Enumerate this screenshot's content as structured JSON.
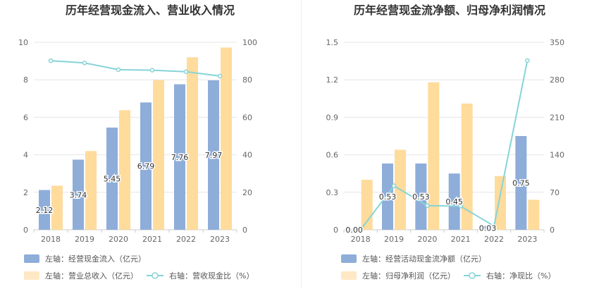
{
  "chart_data": [
    {
      "type": "bar",
      "title": "历年经营现金流入、营业收入情况",
      "categories": [
        "2018",
        "2019",
        "2020",
        "2021",
        "2022",
        "2023"
      ],
      "left_ylim": [
        0,
        10
      ],
      "left_yticks": [
        "0",
        "2",
        "4",
        "6",
        "8",
        "10"
      ],
      "right_ylim": [
        0,
        100
      ],
      "right_yticks": [
        "0",
        "20",
        "40",
        "60",
        "80",
        "100"
      ],
      "grid": true,
      "legend_position": "bottom",
      "series": [
        {
          "name": "左轴：经营现金流入（亿元）",
          "type": "bar",
          "axis": "left",
          "color": "#8eadd9",
          "values": [
            2.12,
            3.74,
            5.45,
            6.79,
            7.76,
            7.97
          ],
          "labels": [
            "2.12",
            "3.74",
            "5.45",
            "6.79",
            "7.76",
            "7.97"
          ]
        },
        {
          "name": "左轴：营业总收入（亿元）",
          "type": "bar",
          "axis": "left",
          "color": "#ffdb9c",
          "values": [
            2.35,
            4.2,
            6.38,
            7.98,
            9.2,
            9.72
          ]
        },
        {
          "name": "右轴：营收现金比（%）",
          "type": "line",
          "axis": "right",
          "color": "#86d4d8",
          "values": [
            90.2,
            89.0,
            85.4,
            85.1,
            84.3,
            82.0
          ]
        }
      ]
    },
    {
      "type": "bar",
      "title": "历年经营现金流净额、归母净利润情况",
      "categories": [
        "2018",
        "2019",
        "2020",
        "2021",
        "2022",
        "2023"
      ],
      "left_ylim": [
        0,
        1.5
      ],
      "left_yticks": [
        "0",
        "0.3",
        "0.6",
        "0.9",
        "1.2",
        "1.5"
      ],
      "right_ylim": [
        0,
        350
      ],
      "right_yticks": [
        "0",
        "70",
        "140",
        "210",
        "280",
        "350"
      ],
      "grid": true,
      "legend_position": "bottom",
      "series": [
        {
          "name": "左轴：经营活动现金流净额（亿元）",
          "type": "bar",
          "axis": "left",
          "color": "#8eadd9",
          "values": [
            0.0,
            0.53,
            0.53,
            0.45,
            0.03,
            0.75
          ],
          "labels": [
            "0.00",
            "0.53",
            "0.53",
            "0.45",
            "0.03",
            "0.75"
          ]
        },
        {
          "name": "左轴：归母净利润（亿元）",
          "type": "bar",
          "axis": "left",
          "color": "#ffdb9c",
          "values": [
            0.4,
            0.64,
            1.18,
            1.01,
            0.43,
            0.24
          ]
        },
        {
          "name": "右轴：净现比（%）",
          "type": "line",
          "axis": "right",
          "color": "#86d4d8",
          "values": [
            0,
            82,
            45,
            44,
            7,
            316
          ]
        }
      ]
    }
  ]
}
